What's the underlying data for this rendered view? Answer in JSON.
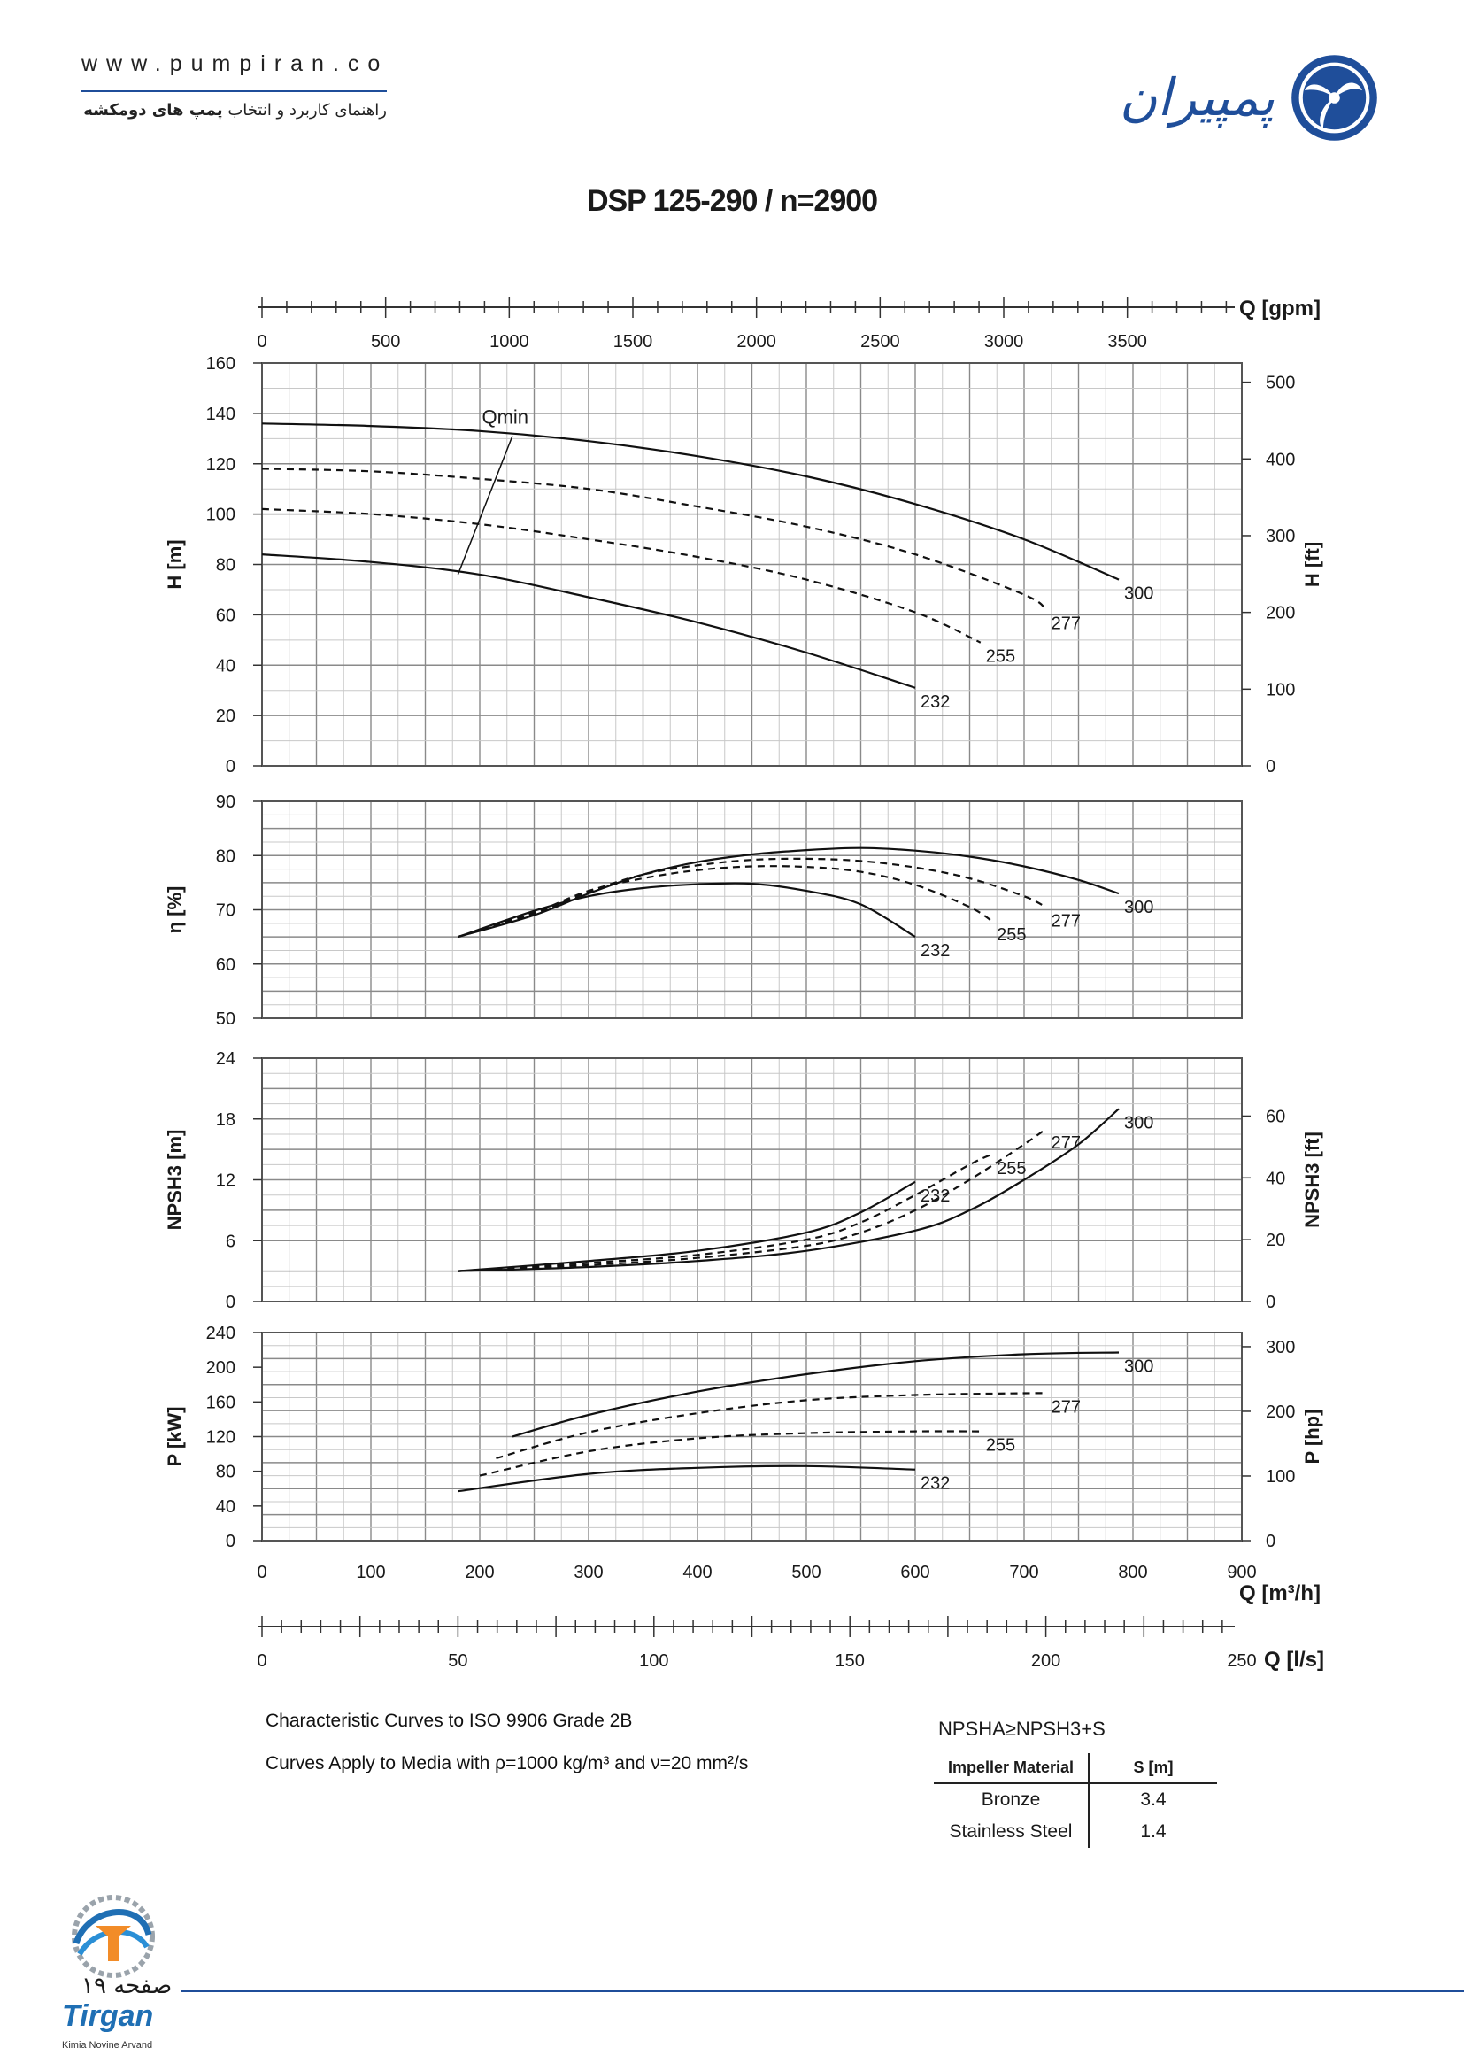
{
  "header": {
    "url": "www.pumpiran.co",
    "subtitle_prefix": "راهنمای کاربرد و انتخاب ",
    "subtitle_bold": "پمپ های دومکشه",
    "brand": "پمپیران"
  },
  "title": "DSP 125-290 / n=2900",
  "notes": {
    "line1": "Characteristic Curves to ISO 9906 Grade 2B",
    "line2_a": "Curves Apply to Media with ",
    "line2_b": "ρ=1000 kg/m³ and ν=20 mm²/s",
    "npsh_rule": "NPSHA≥NPSH3+S"
  },
  "material_table": {
    "headers": [
      "Impeller Material",
      "S [m]"
    ],
    "rows": [
      [
        "Bronze",
        "3.4"
      ],
      [
        "Stainless Steel",
        "1.4"
      ]
    ]
  },
  "footer": {
    "page_label": "صفحه ۱۹",
    "logo_name": "Tirgan",
    "logo_sub": "Kimia Novine Arvand"
  },
  "chart_data": {
    "type": "line",
    "x_axes": {
      "gpm": {
        "label": "Q [gpm]",
        "ticks": [
          "0",
          "500",
          "1000",
          "1500",
          "2000",
          "2500",
          "3000",
          "3500"
        ]
      },
      "m3h": {
        "label": "Q [m³/h]",
        "ticks": [
          "0",
          "100",
          "200",
          "300",
          "400",
          "500",
          "600",
          "700",
          "800",
          "900"
        ],
        "range": [
          0,
          900
        ]
      },
      "ls": {
        "label": "Q [l/s]",
        "ticks": [
          "0",
          "50",
          "100",
          "150",
          "200",
          "250"
        ]
      }
    },
    "impeller_diameters": [
      "232",
      "255",
      "277",
      "300"
    ],
    "head": {
      "ylabel": "H [m]",
      "ylabel_right": "H [ft]",
      "yticks": [
        "0",
        "20",
        "40",
        "60",
        "80",
        "100",
        "120",
        "140",
        "160"
      ],
      "yticks_right": [
        "0",
        "100",
        "200",
        "300",
        "400",
        "500"
      ],
      "ylim": [
        0,
        160
      ],
      "qmin_label": "Qmin",
      "series": [
        {
          "name": "300",
          "x": [
            0,
            100,
            200,
            300,
            400,
            500,
            600,
            700,
            787
          ],
          "y": [
            136,
            135,
            133,
            129,
            123,
            115,
            104,
            90,
            74
          ]
        },
        {
          "name": "277",
          "x": [
            0,
            100,
            200,
            300,
            400,
            500,
            600,
            700,
            720
          ],
          "y": [
            118,
            117,
            114,
            110,
            103,
            95,
            84,
            68,
            62
          ]
        },
        {
          "name": "255",
          "x": [
            0,
            100,
            200,
            300,
            400,
            500,
            600,
            660
          ],
          "y": [
            102,
            100,
            96,
            90,
            83,
            74,
            61,
            49
          ]
        },
        {
          "name": "232",
          "x": [
            0,
            100,
            200,
            300,
            400,
            500,
            600
          ],
          "y": [
            84,
            81,
            76,
            67,
            57,
            45,
            31
          ]
        }
      ]
    },
    "efficiency": {
      "ylabel": "η [%]",
      "yticks": [
        "50",
        "60",
        "70",
        "80",
        "90"
      ],
      "ylim": [
        50,
        90
      ],
      "series": [
        {
          "name": "300",
          "x": [
            180,
            250,
            300,
            350,
            400,
            450,
            500,
            550,
            600,
            650,
            700,
            750,
            787
          ],
          "y": [
            65,
            69,
            73,
            76.5,
            78.8,
            80.2,
            81,
            81.4,
            80.9,
            79.8,
            78,
            75.5,
            73
          ]
        },
        {
          "name": "277",
          "x": [
            180,
            250,
            300,
            350,
            400,
            450,
            500,
            550,
            600,
            650,
            700,
            720
          ],
          "y": [
            65,
            69.2,
            73.3,
            76.5,
            78.2,
            79.2,
            79.4,
            79,
            77.8,
            75.8,
            72.5,
            70.5
          ]
        },
        {
          "name": "255",
          "x": [
            180,
            250,
            300,
            350,
            400,
            450,
            500,
            550,
            600,
            650,
            670
          ],
          "y": [
            65,
            69.5,
            73.5,
            75.8,
            77.3,
            78,
            77.9,
            77,
            74.6,
            70.5,
            68
          ]
        },
        {
          "name": "232",
          "x": [
            180,
            250,
            300,
            350,
            400,
            450,
            500,
            550,
            600
          ],
          "y": [
            65,
            69.8,
            72.5,
            74,
            74.7,
            74.8,
            73.5,
            71,
            65
          ]
        }
      ]
    },
    "npsh": {
      "ylabel": "NPSH3 [m]",
      "ylabel_right": "NPSH3 [ft]",
      "yticks": [
        "0",
        "6",
        "12",
        "18",
        "24"
      ],
      "yticks_right": [
        "0",
        "20",
        "40",
        "60"
      ],
      "ylim": [
        0,
        24
      ],
      "series": [
        {
          "name": "300",
          "x": [
            180,
            300,
            400,
            500,
            600,
            650,
            700,
            750,
            787
          ],
          "y": [
            3,
            3.4,
            4,
            5,
            7,
            9,
            12,
            15.5,
            19
          ]
        },
        {
          "name": "277",
          "x": [
            180,
            300,
            400,
            500,
            550,
            600,
            650,
            700,
            720
          ],
          "y": [
            3,
            3.6,
            4.3,
            5.5,
            6.8,
            9,
            12,
            15.5,
            17
          ]
        },
        {
          "name": "255",
          "x": [
            180,
            300,
            400,
            500,
            550,
            600,
            650,
            670
          ],
          "y": [
            3,
            3.8,
            4.6,
            6.1,
            7.8,
            10.5,
            13.5,
            14.5
          ]
        },
        {
          "name": "232",
          "x": [
            180,
            300,
            400,
            500,
            550,
            600
          ],
          "y": [
            3,
            4,
            5,
            6.8,
            8.8,
            11.8
          ]
        }
      ]
    },
    "power": {
      "ylabel": "P [kW]",
      "ylabel_right": "P [hp]",
      "yticks": [
        "0",
        "40",
        "80",
        "120",
        "160",
        "200",
        "240"
      ],
      "yticks_right": [
        "0",
        "100",
        "200",
        "300"
      ],
      "ylim": [
        0,
        240
      ],
      "series": [
        {
          "name": "300",
          "x": [
            230,
            300,
            400,
            500,
            600,
            700,
            787
          ],
          "y": [
            120,
            145,
            172,
            192,
            207,
            215,
            217
          ]
        },
        {
          "name": "277",
          "x": [
            215,
            300,
            400,
            500,
            600,
            700,
            720
          ],
          "y": [
            95,
            125,
            147,
            162,
            168,
            170,
            170
          ]
        },
        {
          "name": "255",
          "x": [
            200,
            300,
            400,
            500,
            600,
            660
          ],
          "y": [
            75,
            103,
            118,
            124,
            126,
            126
          ]
        },
        {
          "name": "232",
          "x": [
            180,
            300,
            400,
            500,
            600
          ],
          "y": [
            57,
            77,
            84,
            86,
            82
          ]
        }
      ]
    }
  }
}
